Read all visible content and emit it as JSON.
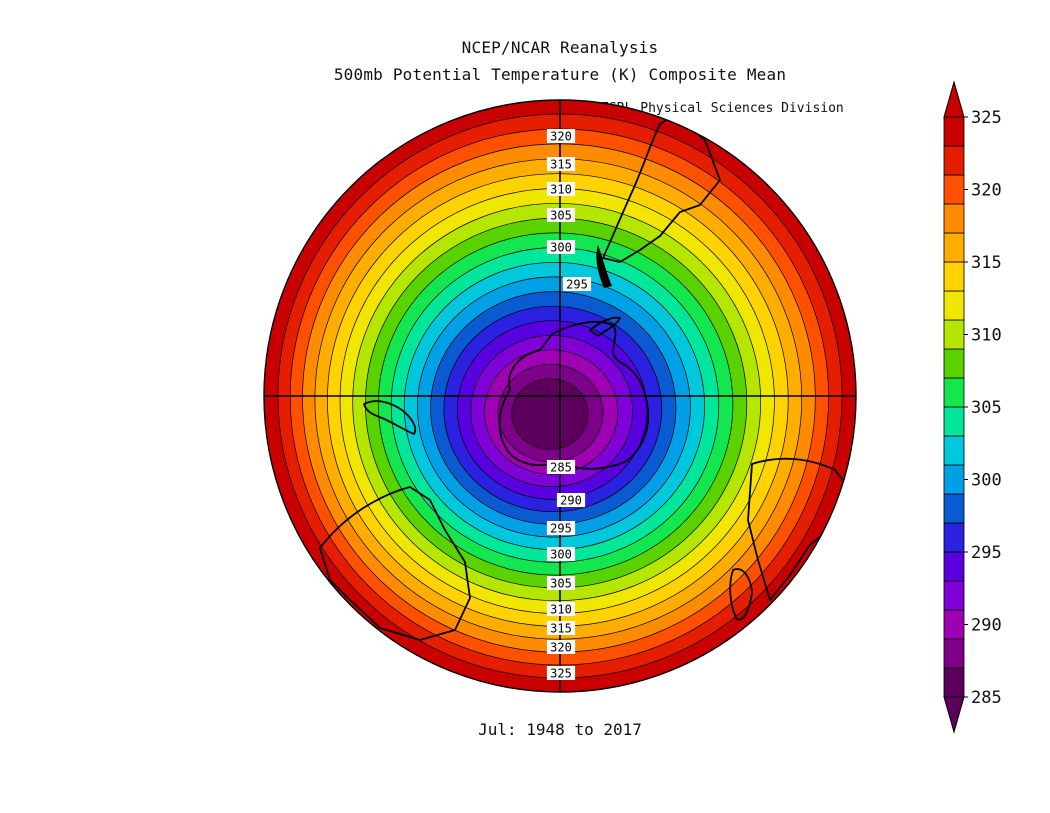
{
  "header": {
    "title_line1": "NCEP/NCAR Reanalysis",
    "title_line2": "500mb Potential Temperature (K) Composite Mean",
    "credit": "NOAA/ESRL Physical Sciences Division"
  },
  "footer": {
    "period": "Jul: 1948 to 2017"
  },
  "map": {
    "projection": "south-polar-stereographic",
    "contour_interval": 2.5,
    "contour_labels_top": [
      "320",
      "315",
      "310",
      "305",
      "300",
      "295"
    ],
    "contour_labels_bottom": [
      "285",
      "290",
      "295",
      "300",
      "305",
      "310",
      "315",
      "320",
      "325"
    ]
  },
  "colorbar": {
    "min": 285,
    "max": 325,
    "step": 2.5,
    "tick_labels": [
      "325",
      "320",
      "315",
      "310",
      "305",
      "300",
      "295",
      "290",
      "285"
    ],
    "colors": [
      "#5c005c",
      "#7c0088",
      "#a000b4",
      "#8000d8",
      "#5800e0",
      "#2a22e0",
      "#0a5ad2",
      "#00a0e6",
      "#00c8dc",
      "#00e69a",
      "#14e650",
      "#5ad200",
      "#b4e600",
      "#f0e600",
      "#ffd200",
      "#ffae00",
      "#ff8c00",
      "#ff5000",
      "#e61e00",
      "#c80000"
    ]
  }
}
